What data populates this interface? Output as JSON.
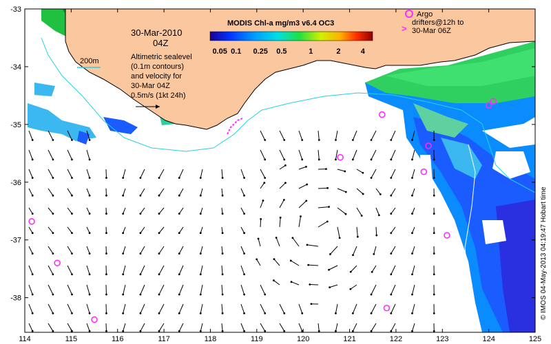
{
  "map": {
    "date_line1": "30-Mar-2010",
    "date_line2": "04Z",
    "legend_200m": "200m",
    "sealevel_text": [
      "Altimetric sealevel",
      "(0.1m contours)",
      "and velocity for",
      "30-Mar 04Z",
      "0.5m/s (1kt 24h)"
    ],
    "colorbar_title": "MODIS Chl-a mg/m3 v6.4 OC3",
    "colorbar_ticks": [
      "0.05",
      "0.1",
      "0.25",
      "0.5",
      "1",
      "2",
      "4"
    ],
    "argo_text": [
      "Argo",
      "drifters@12h to",
      "30-Mar 06Z"
    ],
    "credit": "© IMOS 04-May-2013 04:19:47 Hobart time",
    "x_ticks": [
      "114",
      "115",
      "116",
      "117",
      "118",
      "119",
      "120",
      "121",
      "122",
      "123",
      "124",
      "125"
    ],
    "y_ticks": [
      "-33",
      "-34",
      "-35",
      "-36",
      "-37",
      "-38"
    ],
    "colors": {
      "land": "#fbc79f",
      "contour_200m": "#22d3df",
      "argo": "#ff2bff",
      "ocean": "#ffffff"
    },
    "argo_floats": [
      {
        "lon": 120.8,
        "lat": -35.57
      },
      {
        "lon": 121.7,
        "lat": -34.83
      },
      {
        "lon": 122.6,
        "lat": -35.82
      },
      {
        "lon": 122.7,
        "lat": -35.37
      },
      {
        "lon": 124.0,
        "lat": -34.67
      },
      {
        "lon": 124.1,
        "lat": -34.6
      },
      {
        "lon": 123.1,
        "lat": -36.92
      },
      {
        "lon": 121.8,
        "lat": -38.18
      },
      {
        "lon": 114.15,
        "lat": -36.68
      },
      {
        "lon": 114.7,
        "lat": -37.4
      },
      {
        "lon": 115.5,
        "lat": -38.38
      }
    ]
  }
}
